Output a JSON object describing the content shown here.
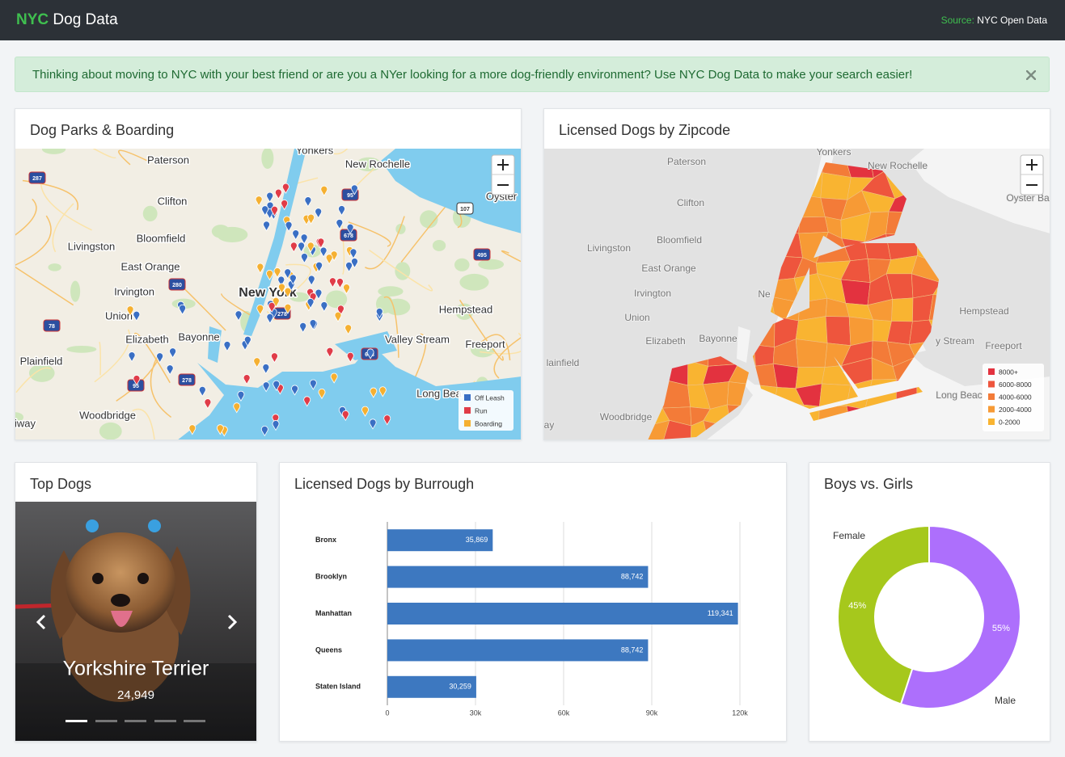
{
  "header": {
    "brand_accent": "NYC",
    "brand": "Dog Data",
    "source_label": "Source:",
    "source": "NYC Open Data"
  },
  "alert": {
    "text": "Thinking about moving to NYC with your best friend or are you a NYer looking for a more dog-friendly environment? Use NYC Dog Data to make your search easier!"
  },
  "map_parks": {
    "title": "Dog Parks & Boarding",
    "places": [
      "Yonkers",
      "Paterson",
      "New Rochelle",
      "Oyster",
      "Clifton",
      "Bloomfield",
      "Livingston",
      "East Orange",
      "New York",
      "Irvington",
      "Hempstead",
      "Union",
      "Elizabeth",
      "Bayonne",
      "Valley Stream",
      "Freeport",
      "Plainfield",
      "Long Bea",
      "Woodbridge",
      "iway"
    ],
    "shields": [
      "287",
      "95",
      "678",
      "107",
      "495",
      "280",
      "78",
      "278",
      "278",
      "678",
      "95"
    ],
    "legend": [
      {
        "label": "Off Leash",
        "color": "#3a6fc4"
      },
      {
        "label": "Run",
        "color": "#e03c48"
      },
      {
        "label": "Boarding",
        "color": "#f5b031"
      }
    ]
  },
  "map_zip": {
    "title": "Licensed Dogs by Zipcode",
    "places": [
      "Yonkers",
      "Paterson",
      "New Rochelle",
      "Oyster Ba",
      "Clifton",
      "Bloomfield",
      "Livingston",
      "East Orange",
      "Irvington",
      "Union",
      "Hempstead",
      "Elizabeth",
      "Bayonne",
      "Freeport",
      "lainfield",
      "Long Beac",
      "Woodbridge",
      "ay",
      "Ne",
      "y Stream"
    ],
    "legend": [
      {
        "label": "8000+",
        "color": "#e3323f"
      },
      {
        "label": "6000-8000",
        "color": "#ee553d"
      },
      {
        "label": "4000-6000",
        "color": "#f37b38"
      },
      {
        "label": "2000-4000",
        "color": "#f79a35"
      },
      {
        "label": "0-2000",
        "color": "#f9b431"
      }
    ]
  },
  "top_dogs": {
    "title": "Top Dogs",
    "breed": "Yorkshire Terrier",
    "count": "24,949"
  },
  "chart_data": [
    {
      "type": "bar",
      "orientation": "horizontal",
      "title": "Licensed Dogs by Burrough",
      "categories": [
        "Bronx",
        "Brooklyn",
        "Manhattan",
        "Queens",
        "Staten Island"
      ],
      "values": [
        35869,
        88742,
        119341,
        88742,
        30259
      ],
      "value_labels": [
        "35,869",
        "88,742",
        "119,341",
        "88,742",
        "30,259"
      ],
      "color": "#3d78c0",
      "xlim": [
        0,
        120000
      ],
      "xticks": [
        0,
        {
          "value": 30000,
          "label": "30k"
        },
        {
          "value": 60000,
          "label": "60k"
        },
        {
          "value": 90000,
          "label": "90k"
        },
        {
          "value": 120000,
          "label": "120k"
        }
      ],
      "grid": true
    },
    {
      "type": "pie",
      "donut": true,
      "title": "Boys vs. Girls",
      "categories": [
        "Female",
        "Male"
      ],
      "values": [
        45,
        55
      ],
      "value_labels": [
        "45%",
        "55%"
      ],
      "colors": [
        "#a6c81c",
        "#ad6ffc"
      ]
    }
  ]
}
